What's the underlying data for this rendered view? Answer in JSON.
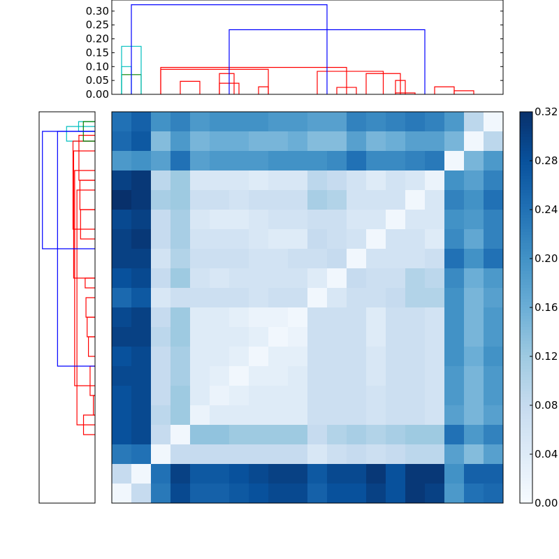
{
  "chart_data": [
    {
      "type": "dendrogram",
      "orientation": "top",
      "title": "",
      "ylim": [
        0,
        0.34
      ],
      "yticks": [
        0.0,
        0.05,
        0.1,
        0.15,
        0.2,
        0.25,
        0.3
      ],
      "ytick_labels": [
        "0.00",
        "0.05",
        "0.10",
        "0.15",
        "0.20",
        "0.25",
        "0.30"
      ],
      "leaf_count": 20,
      "colors": {
        "green": "#008000",
        "red": "#ff0000",
        "cyan": "#00bfbf",
        "blue": "#0000ff"
      },
      "links": [
        {
          "left": 0.5,
          "right": 1.5,
          "height": 0.071,
          "color": "green"
        },
        {
          "left": 14.5,
          "right": 15.5,
          "height": 0.005,
          "color": "red"
        },
        {
          "left": 11.5,
          "right": 12.5,
          "height": 0.025,
          "color": "red"
        },
        {
          "left": 7.5,
          "right": 8.0,
          "height": 0.027,
          "color": "red"
        },
        {
          "left": 5.5,
          "right": 6.5,
          "height": 0.04,
          "color": "red"
        },
        {
          "left": 3.5,
          "right": 4.5,
          "height": 0.047,
          "color": "red"
        },
        {
          "left": 17.5,
          "right": 18.5,
          "height": 0.013,
          "color": "red"
        },
        {
          "left": 16.5,
          "right": 17.5,
          "height": 0.027,
          "color": "red"
        },
        {
          "left": 14.5,
          "right": 15.0,
          "height": 0.05,
          "color": "red"
        },
        {
          "left": 13.0,
          "right": 14.75,
          "height": 0.075,
          "color": "red"
        },
        {
          "left": 5.5,
          "right": 6.25,
          "height": 0.075,
          "color": "red"
        },
        {
          "left": 10.5,
          "right": 13.875,
          "height": 0.083,
          "color": "red"
        },
        {
          "left": 2.5,
          "right": 8.0,
          "height": 0.09,
          "color": "red"
        },
        {
          "left": 2.5,
          "right": 12.0,
          "height": 0.097,
          "color": "red"
        },
        {
          "left": 0.5,
          "right": 1.0,
          "height": 0.1,
          "color": "cyan"
        },
        {
          "left": 0.5,
          "right": 1.5,
          "height": 0.173,
          "color": "cyan"
        },
        {
          "left": 6.0,
          "right": 16.0,
          "height": 0.233,
          "color": "blue"
        },
        {
          "left": 1.0,
          "right": 11.0,
          "height": 0.323,
          "color": "blue"
        }
      ]
    },
    {
      "type": "dendrogram",
      "orientation": "left",
      "title": "",
      "leaf_count": 20,
      "colors": {
        "green": "#008000",
        "red": "#ff0000",
        "cyan": "#00bfbf",
        "blue": "#0000ff"
      },
      "links": [
        {
          "left": 0.5,
          "right": 1.0,
          "height": 0.1,
          "color": "cyan"
        },
        {
          "left": 0.75,
          "right": 1.5,
          "height": 0.173,
          "color": "cyan"
        },
        {
          "left": 1.2,
          "right": 3.5,
          "height": 0.098,
          "color": "red"
        },
        {
          "left": 3.5,
          "right": 5.0,
          "height": 0.092,
          "color": "red"
        },
        {
          "left": 5.0,
          "right": 6.5,
          "height": 0.088,
          "color": "red"
        },
        {
          "left": 8.5,
          "right": 9.0,
          "height": 0.06,
          "color": "red"
        },
        {
          "left": 9.5,
          "right": 10.5,
          "height": 0.055,
          "color": "red"
        },
        {
          "left": 10.5,
          "right": 11.5,
          "height": 0.048,
          "color": "red"
        },
        {
          "left": 11.5,
          "right": 12.5,
          "height": 0.04,
          "color": "red"
        },
        {
          "left": 13.0,
          "right": 14.5,
          "height": 0.03,
          "color": "red"
        },
        {
          "left": 14.5,
          "right": 15.5,
          "height": 0.01,
          "color": "red"
        },
        {
          "left": 15.5,
          "right": 16.5,
          "height": 0.07,
          "color": "red"
        },
        {
          "left": 4.0,
          "right": 16.0,
          "height": 0.11,
          "color": "red"
        },
        {
          "left": 3.0,
          "right": 14.0,
          "height": 0.124,
          "color": "red"
        },
        {
          "left": 2.0,
          "right": 8.5,
          "height": 0.13,
          "color": "red"
        },
        {
          "left": 1.5,
          "right": 6.0,
          "height": 0.134,
          "color": "red"
        },
        {
          "left": 0.5,
          "right": 1.5,
          "height": 0.071,
          "color": "green"
        },
        {
          "left": 1.0,
          "right": 13.0,
          "height": 0.228,
          "color": "blue"
        },
        {
          "left": 1.0,
          "right": 7.0,
          "height": 0.32,
          "color": "blue"
        }
      ]
    },
    {
      "type": "heatmap",
      "title": "",
      "rows": 20,
      "cols": 20,
      "colormap": "Blues",
      "vmin": 0.0,
      "vmax": 0.32,
      "colorbar_ticks": [
        0.0,
        0.04,
        0.08,
        0.12,
        0.16,
        0.2,
        0.24,
        0.28,
        0.32
      ],
      "colorbar_tick_labels": [
        "0.00",
        "0.04",
        "0.08",
        "0.12",
        "0.16",
        "0.20",
        "0.24",
        "0.28",
        "0.32"
      ],
      "values": [
        [
          0.24,
          0.26,
          0.2,
          0.22,
          0.19,
          0.2,
          0.2,
          0.2,
          0.19,
          0.19,
          0.18,
          0.18,
          0.22,
          0.21,
          0.22,
          0.23,
          0.22,
          0.19,
          0.09,
          0.01
        ],
        [
          0.25,
          0.27,
          0.14,
          0.19,
          0.15,
          0.16,
          0.16,
          0.15,
          0.15,
          0.16,
          0.14,
          0.14,
          0.18,
          0.15,
          0.16,
          0.18,
          0.18,
          0.15,
          0.01,
          0.09
        ],
        [
          0.19,
          0.2,
          0.18,
          0.24,
          0.18,
          0.19,
          0.19,
          0.19,
          0.2,
          0.2,
          0.2,
          0.21,
          0.24,
          0.21,
          0.21,
          0.22,
          0.23,
          0.01,
          0.15,
          0.19
        ],
        [
          0.3,
          0.31,
          0.09,
          0.12,
          0.05,
          0.05,
          0.05,
          0.04,
          0.05,
          0.05,
          0.09,
          0.08,
          0.06,
          0.04,
          0.06,
          0.05,
          0.02,
          0.2,
          0.18,
          0.22
        ],
        [
          0.32,
          0.31,
          0.11,
          0.12,
          0.07,
          0.07,
          0.06,
          0.07,
          0.07,
          0.07,
          0.11,
          0.1,
          0.06,
          0.06,
          0.06,
          0.01,
          0.05,
          0.22,
          0.2,
          0.24
        ],
        [
          0.29,
          0.3,
          0.08,
          0.11,
          0.05,
          0.04,
          0.04,
          0.05,
          0.06,
          0.06,
          0.07,
          0.07,
          0.05,
          0.05,
          0.01,
          0.05,
          0.05,
          0.2,
          0.19,
          0.22
        ],
        [
          0.3,
          0.31,
          0.08,
          0.11,
          0.06,
          0.06,
          0.06,
          0.05,
          0.04,
          0.04,
          0.08,
          0.07,
          0.06,
          0.01,
          0.06,
          0.06,
          0.04,
          0.21,
          0.17,
          0.22
        ],
        [
          0.3,
          0.3,
          0.06,
          0.1,
          0.07,
          0.07,
          0.07,
          0.06,
          0.06,
          0.07,
          0.07,
          0.08,
          0.01,
          0.06,
          0.06,
          0.06,
          0.07,
          0.24,
          0.2,
          0.24
        ],
        [
          0.28,
          0.29,
          0.08,
          0.12,
          0.06,
          0.05,
          0.06,
          0.06,
          0.06,
          0.06,
          0.04,
          0.01,
          0.08,
          0.07,
          0.07,
          0.1,
          0.09,
          0.21,
          0.16,
          0.19
        ],
        [
          0.25,
          0.27,
          0.05,
          0.07,
          0.07,
          0.07,
          0.07,
          0.06,
          0.07,
          0.07,
          0.01,
          0.05,
          0.07,
          0.07,
          0.08,
          0.1,
          0.1,
          0.2,
          0.15,
          0.18
        ],
        [
          0.29,
          0.3,
          0.08,
          0.12,
          0.04,
          0.04,
          0.03,
          0.02,
          0.02,
          0.01,
          0.07,
          0.07,
          0.07,
          0.04,
          0.07,
          0.07,
          0.06,
          0.2,
          0.15,
          0.19
        ],
        [
          0.3,
          0.3,
          0.09,
          0.12,
          0.04,
          0.04,
          0.04,
          0.03,
          0.01,
          0.02,
          0.07,
          0.07,
          0.07,
          0.04,
          0.07,
          0.07,
          0.06,
          0.2,
          0.15,
          0.19
        ],
        [
          0.28,
          0.29,
          0.08,
          0.11,
          0.04,
          0.04,
          0.03,
          0.01,
          0.03,
          0.03,
          0.07,
          0.07,
          0.07,
          0.05,
          0.07,
          0.07,
          0.06,
          0.2,
          0.16,
          0.2
        ],
        [
          0.29,
          0.29,
          0.08,
          0.11,
          0.04,
          0.03,
          0.01,
          0.03,
          0.03,
          0.04,
          0.07,
          0.07,
          0.07,
          0.05,
          0.07,
          0.07,
          0.06,
          0.19,
          0.15,
          0.19
        ],
        [
          0.28,
          0.29,
          0.08,
          0.12,
          0.04,
          0.02,
          0.03,
          0.04,
          0.04,
          0.04,
          0.07,
          0.07,
          0.07,
          0.06,
          0.07,
          0.07,
          0.06,
          0.19,
          0.15,
          0.19
        ],
        [
          0.28,
          0.29,
          0.09,
          0.12,
          0.02,
          0.04,
          0.04,
          0.04,
          0.04,
          0.04,
          0.07,
          0.07,
          0.07,
          0.06,
          0.07,
          0.07,
          0.06,
          0.18,
          0.15,
          0.18
        ],
        [
          0.28,
          0.29,
          0.08,
          0.01,
          0.13,
          0.13,
          0.12,
          0.12,
          0.12,
          0.12,
          0.08,
          0.1,
          0.11,
          0.1,
          0.11,
          0.12,
          0.12,
          0.24,
          0.19,
          0.22
        ],
        [
          0.23,
          0.24,
          0.01,
          0.08,
          0.08,
          0.08,
          0.08,
          0.08,
          0.08,
          0.08,
          0.05,
          0.07,
          0.08,
          0.07,
          0.08,
          0.09,
          0.09,
          0.18,
          0.14,
          0.18
        ],
        [
          0.08,
          0.01,
          0.24,
          0.3,
          0.27,
          0.27,
          0.28,
          0.29,
          0.3,
          0.3,
          0.27,
          0.29,
          0.29,
          0.31,
          0.28,
          0.31,
          0.31,
          0.2,
          0.26,
          0.26
        ],
        [
          0.01,
          0.08,
          0.23,
          0.29,
          0.26,
          0.26,
          0.27,
          0.28,
          0.29,
          0.29,
          0.26,
          0.28,
          0.28,
          0.3,
          0.28,
          0.31,
          0.3,
          0.19,
          0.24,
          0.25
        ]
      ]
    }
  ]
}
